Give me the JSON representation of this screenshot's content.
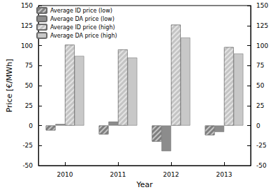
{
  "chart_data": {
    "type": "bar",
    "categories": [
      "2010",
      "2011",
      "2012",
      "2013"
    ],
    "x_label": "Year",
    "y_label": "Price [€/MWh]",
    "series": [
      {
        "name": "Average ID price (low)",
        "color": "#7f7f7f",
        "values": [
          -6,
          -11,
          -20,
          -12
        ]
      },
      {
        "name": "Average DA price (low)",
        "color": "#8c8c8c",
        "values": [
          2,
          5,
          -32,
          -8
        ]
      },
      {
        "name": "Average ID price (high)",
        "color": "#c4c4c4",
        "values": [
          101,
          95,
          126,
          98
        ]
      },
      {
        "name": "Average DA price (high)",
        "color": "#c8c8c8",
        "values": [
          87,
          85,
          110,
          90
        ]
      }
    ],
    "ylim": [
      -50,
      150
    ],
    "yticks": [
      -50,
      -25,
      0,
      25,
      50,
      75,
      100,
      125,
      150
    ],
    "grid": false,
    "legend": "upper left"
  }
}
